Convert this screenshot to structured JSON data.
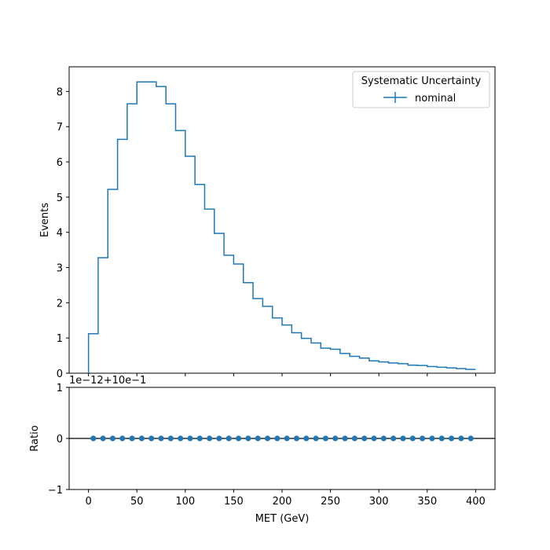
{
  "chart_data": [
    {
      "type": "histogram",
      "panel": "top",
      "ylabel": "Events",
      "xlabel": "",
      "xlim": [
        -20,
        420
      ],
      "ylim": [
        0,
        8.7
      ],
      "bin_edges": [
        0,
        10,
        20,
        30,
        40,
        50,
        60,
        70,
        80,
        90,
        100,
        110,
        120,
        130,
        140,
        150,
        160,
        170,
        180,
        190,
        200,
        210,
        220,
        230,
        240,
        250,
        260,
        270,
        280,
        290,
        300,
        310,
        320,
        330,
        340,
        350,
        360,
        370,
        380,
        390,
        400
      ],
      "series": [
        {
          "name": "nominal",
          "color": "#1f77b4",
          "values": [
            1.12,
            3.28,
            5.22,
            6.64,
            7.65,
            8.27,
            8.27,
            8.14,
            7.65,
            6.89,
            6.16,
            5.36,
            4.66,
            3.97,
            3.35,
            3.1,
            2.57,
            2.12,
            1.9,
            1.57,
            1.37,
            1.15,
            0.99,
            0.86,
            0.71,
            0.68,
            0.56,
            0.48,
            0.43,
            0.35,
            0.32,
            0.29,
            0.27,
            0.23,
            0.22,
            0.19,
            0.17,
            0.15,
            0.13,
            0.11
          ]
        }
      ],
      "yticks": [
        "0",
        "1",
        "2",
        "3",
        "4",
        "5",
        "6",
        "7",
        "8"
      ],
      "ytick_values": [
        0,
        1,
        2,
        3,
        4,
        5,
        6,
        7,
        8
      ],
      "legend": {
        "title": "Systematic Uncertainty",
        "entries": [
          "nominal"
        ],
        "placement": "top-right"
      }
    },
    {
      "type": "scatter",
      "panel": "bottom",
      "ylabel": "Ratio",
      "xlabel": "MET (GeV)",
      "xlim": [
        -20,
        420
      ],
      "ylim": [
        -1,
        1
      ],
      "offset_text": "1e−12+10e−1",
      "x": [
        5,
        15,
        25,
        35,
        45,
        55,
        65,
        75,
        85,
        95,
        105,
        115,
        125,
        135,
        145,
        155,
        165,
        175,
        185,
        195,
        205,
        215,
        225,
        235,
        245,
        255,
        265,
        275,
        285,
        295,
        305,
        315,
        325,
        335,
        345,
        355,
        365,
        375,
        385,
        395
      ],
      "values": [
        0,
        0,
        0,
        0,
        0,
        0,
        0,
        0,
        0,
        0,
        0,
        0,
        0,
        0,
        0,
        0,
        0,
        0,
        0,
        0,
        0,
        0,
        0,
        0,
        0,
        0,
        0,
        0,
        0,
        0,
        0,
        0,
        0,
        0,
        0,
        0,
        0,
        0,
        0,
        0
      ],
      "reference_line": 0,
      "yticks": [
        "−1",
        "0",
        "1"
      ],
      "ytick_values": [
        -1,
        0,
        1
      ],
      "xticks": [
        "0",
        "50",
        "100",
        "150",
        "200",
        "250",
        "300",
        "350",
        "400"
      ],
      "xtick_values": [
        0,
        50,
        100,
        150,
        200,
        250,
        300,
        350,
        400
      ],
      "marker_color": "#1f77b4"
    }
  ]
}
